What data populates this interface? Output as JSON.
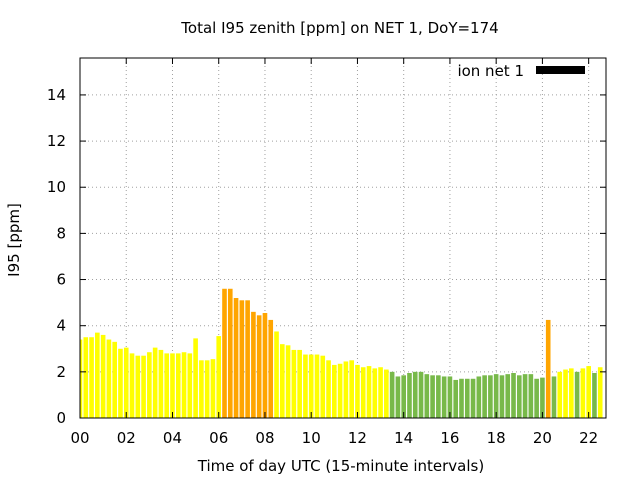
{
  "chart_data": {
    "type": "bar",
    "title": "Total I95 zenith [ppm] on NET 1, DoY=174",
    "xlabel": "Time of day UTC (15-minute intervals)",
    "ylabel": "I95 [ppm]",
    "xlim": [
      0,
      22.75
    ],
    "ylim": [
      0,
      15.6
    ],
    "x_ticks": [
      0,
      2,
      4,
      6,
      8,
      10,
      12,
      14,
      16,
      18,
      20,
      22
    ],
    "x_tick_labels": [
      "00",
      "02",
      "04",
      "06",
      "08",
      "10",
      "12",
      "14",
      "16",
      "18",
      "20",
      "22"
    ],
    "y_ticks": [
      0,
      2,
      4,
      6,
      8,
      10,
      12,
      14
    ],
    "y_tick_labels": [
      "0",
      "2",
      "4",
      "6",
      "8",
      "10",
      "12",
      "14"
    ],
    "grid": true,
    "legend": {
      "position": "top-right",
      "label": "ion net 1",
      "color": "#000000"
    },
    "bar_width_hours": 0.2,
    "colors": {
      "low": "#ffff00",
      "medium": "#ffa500",
      "good": "#78b94a"
    },
    "series": [
      {
        "x": [
          0.0,
          0.25,
          0.5,
          0.75,
          1.0,
          1.25,
          1.5,
          1.75,
          2.0,
          2.25,
          2.5,
          2.75,
          3.0,
          3.25,
          3.5,
          3.75,
          4.0,
          4.25,
          4.5,
          4.75,
          5.0,
          5.25,
          5.5,
          5.75,
          6.0,
          6.25,
          6.5,
          6.75,
          7.0,
          7.25,
          7.5,
          7.75,
          8.0,
          8.25,
          8.5,
          8.75,
          9.0,
          9.25,
          9.5,
          9.75,
          10.0,
          10.25,
          10.5,
          10.75,
          11.0,
          11.25,
          11.5,
          11.75,
          12.0,
          12.25,
          12.5,
          12.75,
          13.0,
          13.25,
          13.5,
          13.75,
          14.0,
          14.25,
          14.5,
          14.75,
          15.0,
          15.25,
          15.5,
          15.75,
          16.0,
          16.25,
          16.5,
          16.75,
          17.0,
          17.25,
          17.5,
          17.75,
          18.0,
          18.25,
          18.5,
          18.75,
          19.0,
          19.25,
          19.5,
          19.75,
          20.0,
          20.25,
          20.5,
          20.75,
          21.0,
          21.25,
          21.5,
          21.75,
          22.0,
          22.25,
          22.5
        ],
        "values": [
          3.4,
          3.5,
          3.5,
          3.7,
          3.6,
          3.4,
          3.3,
          3.0,
          3.05,
          2.8,
          2.7,
          2.7,
          2.85,
          3.05,
          2.95,
          2.8,
          2.8,
          2.8,
          2.85,
          2.8,
          3.45,
          2.5,
          2.5,
          2.55,
          3.55,
          5.6,
          5.6,
          5.2,
          5.1,
          5.1,
          4.6,
          4.45,
          4.55,
          4.25,
          3.75,
          3.2,
          3.15,
          2.95,
          2.95,
          2.75,
          2.75,
          2.75,
          2.7,
          2.5,
          2.3,
          2.35,
          2.45,
          2.5,
          2.3,
          2.2,
          2.25,
          2.15,
          2.2,
          2.1,
          2.0,
          1.8,
          1.85,
          1.95,
          2.0,
          2.0,
          1.9,
          1.85,
          1.85,
          1.8,
          1.8,
          1.65,
          1.7,
          1.7,
          1.7,
          1.8,
          1.85,
          1.85,
          1.9,
          1.85,
          1.9,
          1.95,
          1.85,
          1.9,
          1.9,
          1.7,
          1.75,
          4.25,
          1.8,
          2.0,
          2.1,
          2.15,
          2.0,
          2.15,
          2.25,
          1.95,
          2.2
        ],
        "levels": [
          "low",
          "low",
          "low",
          "low",
          "low",
          "low",
          "low",
          "low",
          "low",
          "low",
          "low",
          "low",
          "low",
          "low",
          "low",
          "low",
          "low",
          "low",
          "low",
          "low",
          "low",
          "low",
          "low",
          "low",
          "low",
          "medium",
          "medium",
          "medium",
          "medium",
          "medium",
          "medium",
          "medium",
          "medium",
          "medium",
          "low",
          "low",
          "low",
          "low",
          "low",
          "low",
          "low",
          "low",
          "low",
          "low",
          "low",
          "low",
          "low",
          "low",
          "low",
          "low",
          "low",
          "low",
          "low",
          "low",
          "good",
          "good",
          "good",
          "good",
          "good",
          "good",
          "good",
          "good",
          "good",
          "good",
          "good",
          "good",
          "good",
          "good",
          "good",
          "good",
          "good",
          "good",
          "good",
          "good",
          "good",
          "good",
          "good",
          "good",
          "good",
          "good",
          "good",
          "medium",
          "good",
          "low",
          "low",
          "low",
          "good",
          "low",
          "low",
          "good",
          "low"
        ]
      }
    ]
  }
}
